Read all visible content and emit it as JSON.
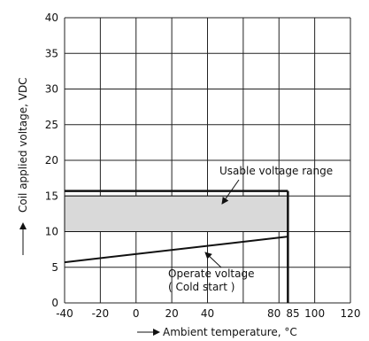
{
  "chart_data": {
    "type": "line",
    "xlabel": "Ambient temperature, °C",
    "ylabel": "Coil applied voltage, VDC",
    "xlim": [
      -40,
      120
    ],
    "ylim": [
      0,
      40
    ],
    "x_ticks": [
      -40,
      -20,
      0,
      20,
      40,
      80,
      85,
      100,
      120
    ],
    "x_tick_labels": [
      "-40",
      "-20",
      "0",
      "20",
      "40",
      "80",
      "85",
      "100",
      "120"
    ],
    "x_gridlines": [
      -40,
      -20,
      0,
      20,
      40,
      60,
      80,
      100,
      120
    ],
    "y_ticks": [
      0,
      5,
      10,
      15,
      20,
      25,
      30,
      35,
      40
    ],
    "grid": true,
    "series": [
      {
        "name": "Operate voltage (Cold start)",
        "x": [
          -40,
          85
        ],
        "y": [
          5.7,
          9.3
        ]
      }
    ],
    "regions": [
      {
        "name": "Usable voltage range",
        "x_range": [
          -40,
          85
        ],
        "y_range": [
          10,
          15
        ]
      }
    ],
    "max_voltage_line": {
      "y": 15.7,
      "x_range": [
        -40,
        85
      ]
    },
    "limit_line": {
      "x": 85
    },
    "annotations": {
      "usable": "Usable voltage range",
      "operate_line1": "Operate voltage",
      "operate_line2": "( Cold start )"
    }
  }
}
